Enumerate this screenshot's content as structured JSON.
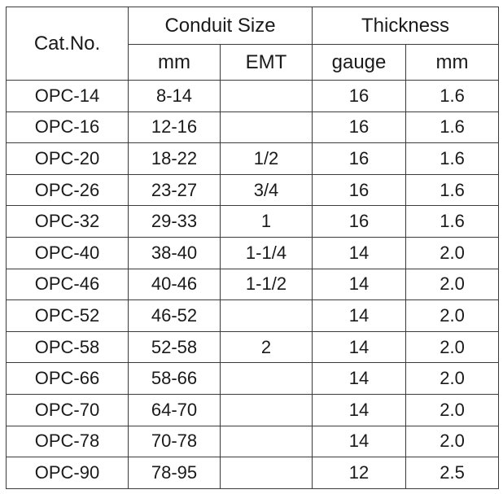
{
  "header": {
    "cat_no": "Cat.No.",
    "conduit_size": "Conduit Size",
    "thickness": "Thickness",
    "sub": {
      "mm": "mm",
      "emt": "EMT",
      "gauge": "gauge",
      "mm2": "mm"
    }
  },
  "rows": [
    {
      "cat": "OPC-14",
      "mm": "8-14",
      "emt": "",
      "gauge": "16",
      "thk": "1.6"
    },
    {
      "cat": "OPC-16",
      "mm": "12-16",
      "emt": "",
      "gauge": "16",
      "thk": "1.6"
    },
    {
      "cat": "OPC-20",
      "mm": "18-22",
      "emt": "1/2",
      "gauge": "16",
      "thk": "1.6"
    },
    {
      "cat": "OPC-26",
      "mm": "23-27",
      "emt": "3/4",
      "gauge": "16",
      "thk": "1.6"
    },
    {
      "cat": "OPC-32",
      "mm": "29-33",
      "emt": "1",
      "gauge": "16",
      "thk": "1.6"
    },
    {
      "cat": "OPC-40",
      "mm": "38-40",
      "emt": "1-1/4",
      "gauge": "14",
      "thk": "2.0"
    },
    {
      "cat": "OPC-46",
      "mm": "40-46",
      "emt": "1-1/2",
      "gauge": "14",
      "thk": "2.0"
    },
    {
      "cat": "OPC-52",
      "mm": "46-52",
      "emt": "",
      "gauge": "14",
      "thk": "2.0"
    },
    {
      "cat": "OPC-58",
      "mm": "52-58",
      "emt": "2",
      "gauge": "14",
      "thk": "2.0"
    },
    {
      "cat": "OPC-66",
      "mm": "58-66",
      "emt": "",
      "gauge": "14",
      "thk": "2.0"
    },
    {
      "cat": "OPC-70",
      "mm": "64-70",
      "emt": "",
      "gauge": "14",
      "thk": "2.0"
    },
    {
      "cat": "OPC-78",
      "mm": "70-78",
      "emt": "",
      "gauge": "14",
      "thk": "2.0"
    },
    {
      "cat": "OPC-90",
      "mm": "78-95",
      "emt": "",
      "gauge": "12",
      "thk": "2.5"
    }
  ]
}
